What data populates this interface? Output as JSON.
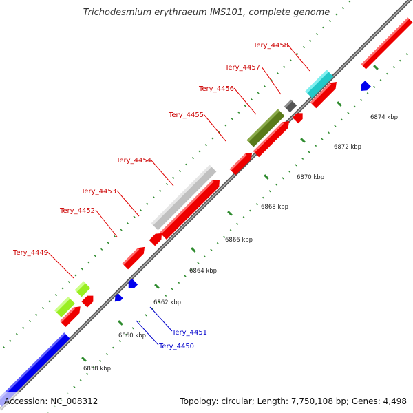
{
  "title": "Trichodesmium erythraeum IMS101, complete genome",
  "footer": {
    "accession": "Accession: NC_008312",
    "stats": "Topology: circular; Length: 7,750,108 bp; Genes: 4,498"
  },
  "colors": {
    "forward_cds": "#ff0000",
    "reverse_cds": "#0000ff",
    "backbone": "#808080",
    "tick_marks": "#2e8b2e",
    "label_forward": "#cc0000",
    "label_reverse": "#0000cc"
  },
  "tick_labels": [
    "6858 kbp",
    "6860 kbp",
    "6862 kbp",
    "6864 kbp",
    "6866 kbp",
    "6868 kbp",
    "6870 kbp",
    "6872 kbp",
    "6874 kbp"
  ],
  "gene_labels": [
    {
      "name": "Tery_4449",
      "strand": "forward"
    },
    {
      "name": "Tery_4452",
      "strand": "forward"
    },
    {
      "name": "Tery_4453",
      "strand": "forward"
    },
    {
      "name": "Tery_4454",
      "strand": "forward"
    },
    {
      "name": "Tery_4455",
      "strand": "forward"
    },
    {
      "name": "Tery_4456",
      "strand": "forward"
    },
    {
      "name": "Tery_4457",
      "strand": "forward"
    },
    {
      "name": "Tery_4458",
      "strand": "forward"
    },
    {
      "name": "Tery_4451",
      "strand": "reverse"
    },
    {
      "name": "Tery_4450",
      "strand": "reverse"
    }
  ]
}
